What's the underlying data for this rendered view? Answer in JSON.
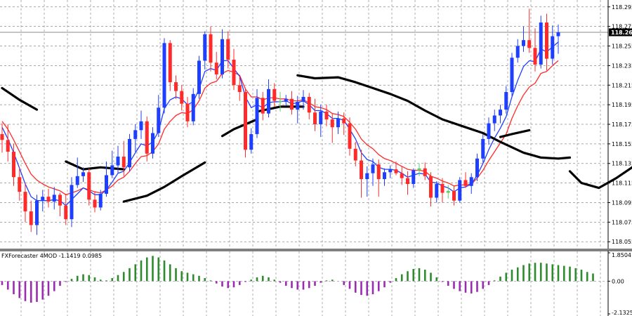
{
  "chart_data": [
    {
      "type": "candlestick",
      "ylim": [
        118.048,
        118.302
      ],
      "y_ticks": [
        "118.295",
        "118.275",
        "118.255",
        "118.235",
        "118.215",
        "118.195",
        "118.175",
        "118.155",
        "118.135",
        "118.115",
        "118.095",
        "118.075",
        "118.055"
      ],
      "grid": true,
      "current_price": {
        "value": 118.269,
        "label": "118.269"
      },
      "colors": {
        "bull": "#1f3fff",
        "bear": "#ff2a2a",
        "doji": "#66cc66",
        "fast_ma": "#1f3fff",
        "slow_ma": "#ff2a2a",
        "band": "#000000"
      },
      "candles": [
        [
          118.165,
          118.176,
          118.146,
          118.159
        ],
        [
          118.159,
          118.175,
          118.137,
          118.147
        ],
        [
          118.147,
          118.155,
          118.112,
          118.121
        ],
        [
          118.121,
          118.131,
          118.097,
          118.106
        ],
        [
          118.106,
          118.115,
          118.075,
          118.086
        ],
        [
          118.086,
          118.097,
          118.065,
          118.072
        ],
        [
          118.072,
          118.103,
          118.062,
          118.097
        ],
        [
          118.097,
          118.108,
          118.086,
          118.101
        ],
        [
          118.101,
          118.109,
          118.09,
          118.096
        ],
        [
          118.096,
          118.111,
          118.088,
          118.103
        ],
        [
          118.103,
          118.105,
          118.081,
          118.092
        ],
        [
          118.092,
          118.104,
          118.072,
          118.078
        ],
        [
          118.078,
          118.121,
          118.07,
          118.113
        ],
        [
          118.113,
          118.141,
          118.11,
          118.122
        ],
        [
          118.122,
          118.131,
          118.116,
          118.126
        ],
        [
          118.126,
          118.13,
          118.092,
          118.098
        ],
        [
          118.098,
          118.106,
          118.085,
          118.09
        ],
        [
          118.09,
          118.108,
          118.087,
          118.104
        ],
        [
          118.104,
          118.137,
          118.101,
          118.123
        ],
        [
          118.123,
          118.148,
          118.12,
          118.133
        ],
        [
          118.133,
          118.153,
          118.125,
          118.142
        ],
        [
          118.142,
          118.158,
          118.122,
          118.131
        ],
        [
          118.131,
          118.165,
          118.127,
          118.16
        ],
        [
          118.16,
          118.175,
          118.147,
          118.169
        ],
        [
          118.169,
          118.189,
          118.16,
          118.178
        ],
        [
          118.178,
          118.183,
          118.137,
          118.145
        ],
        [
          118.145,
          118.172,
          118.14,
          118.166
        ],
        [
          118.166,
          118.205,
          118.162,
          118.192
        ],
        [
          118.192,
          118.263,
          118.186,
          118.258
        ],
        [
          118.258,
          118.261,
          118.209,
          118.218
        ],
        [
          118.218,
          118.225,
          118.201,
          118.209
        ],
        [
          118.209,
          118.215,
          118.189,
          118.196
        ],
        [
          118.196,
          118.203,
          118.172,
          118.178
        ],
        [
          118.178,
          118.212,
          118.174,
          118.206
        ],
        [
          118.206,
          118.245,
          118.201,
          118.24
        ],
        [
          118.24,
          118.27,
          118.231,
          118.267
        ],
        [
          118.267,
          118.275,
          118.229,
          118.238
        ],
        [
          118.238,
          118.249,
          118.221,
          118.226
        ],
        [
          118.226,
          118.272,
          118.222,
          118.262
        ],
        [
          118.262,
          118.27,
          118.232,
          118.241
        ],
        [
          118.241,
          118.252,
          118.21,
          118.215
        ],
        [
          118.215,
          118.225,
          118.199,
          118.208
        ],
        [
          118.208,
          118.212,
          118.141,
          118.149
        ],
        [
          118.149,
          118.171,
          118.145,
          118.165
        ],
        [
          118.165,
          118.211,
          118.161,
          118.202
        ],
        [
          118.202,
          118.208,
          118.179,
          118.186
        ],
        [
          118.186,
          118.221,
          118.182,
          118.211
        ],
        [
          118.211,
          118.217,
          118.193,
          118.199
        ],
        [
          118.199,
          118.208,
          118.188,
          118.198
        ],
        [
          118.198,
          118.205,
          118.194,
          118.201
        ],
        [
          118.201,
          118.209,
          118.185,
          118.19
        ],
        [
          118.19,
          118.204,
          118.176,
          118.198
        ],
        [
          118.198,
          118.21,
          118.19,
          118.203
        ],
        [
          118.203,
          118.207,
          118.18,
          118.187
        ],
        [
          118.187,
          118.201,
          118.168,
          118.175
        ],
        [
          118.175,
          118.195,
          118.162,
          118.188
        ],
        [
          118.188,
          118.195,
          118.173,
          118.18
        ],
        [
          118.18,
          118.186,
          118.156,
          118.172
        ],
        [
          118.172,
          118.188,
          118.165,
          118.181
        ],
        [
          118.181,
          118.187,
          118.164,
          118.176
        ],
        [
          118.176,
          118.182,
          118.143,
          118.15
        ],
        [
          118.15,
          118.157,
          118.132,
          118.138
        ],
        [
          118.138,
          118.149,
          118.1,
          118.119
        ],
        [
          118.119,
          118.132,
          118.101,
          118.125
        ],
        [
          118.125,
          118.14,
          118.112,
          118.134
        ],
        [
          118.134,
          118.139,
          118.101,
          118.119
        ],
        [
          118.119,
          118.13,
          118.112,
          118.126
        ],
        [
          118.126,
          118.133,
          118.12,
          118.129
        ],
        [
          118.129,
          118.137,
          118.123,
          118.125
        ],
        [
          118.125,
          118.132,
          118.113,
          118.12
        ],
        [
          118.12,
          118.127,
          118.103,
          118.114
        ],
        [
          118.114,
          118.13,
          118.11,
          118.128
        ],
        [
          118.128,
          118.135,
          118.122,
          118.13
        ],
        [
          118.13,
          118.136,
          118.118,
          118.122
        ],
        [
          118.122,
          118.126,
          118.091,
          118.1
        ],
        [
          118.1,
          118.117,
          118.095,
          118.114
        ],
        [
          118.114,
          118.12,
          118.095,
          118.105
        ],
        [
          118.105,
          118.113,
          118.099,
          118.107
        ],
        [
          118.107,
          118.112,
          118.092,
          118.097
        ],
        [
          118.097,
          118.121,
          118.095,
          118.118
        ],
        [
          118.118,
          118.126,
          118.11,
          118.112
        ],
        [
          118.112,
          118.125,
          118.104,
          118.121
        ],
        [
          118.121,
          118.145,
          118.117,
          118.14
        ],
        [
          118.14,
          118.165,
          118.136,
          118.16
        ],
        [
          118.16,
          118.182,
          118.154,
          118.176
        ],
        [
          118.176,
          118.19,
          118.168,
          118.184
        ],
        [
          118.184,
          118.195,
          118.176,
          118.19
        ],
        [
          118.19,
          118.214,
          118.186,
          118.208
        ],
        [
          118.208,
          118.248,
          118.204,
          118.243
        ],
        [
          118.243,
          118.262,
          118.238,
          118.255
        ],
        [
          118.255,
          118.275,
          118.249,
          118.261
        ],
        [
          118.261,
          118.293,
          118.248,
          118.253
        ],
        [
          118.253,
          118.273,
          118.229,
          118.236
        ],
        [
          118.236,
          118.286,
          118.232,
          118.279
        ],
        [
          118.279,
          118.288,
          118.23,
          118.242
        ],
        [
          118.242,
          118.276,
          118.236,
          118.265
        ],
        [
          118.265,
          118.277,
          118.247,
          118.269
        ]
      ],
      "fast_ma": [
        118.172,
        118.16,
        118.146,
        118.13,
        118.114,
        118.101,
        118.097,
        118.097,
        118.097,
        118.098,
        118.097,
        118.092,
        118.098,
        118.104,
        118.11,
        118.107,
        118.103,
        118.103,
        118.108,
        118.116,
        118.125,
        118.127,
        118.136,
        118.146,
        118.155,
        118.153,
        118.157,
        118.168,
        118.191,
        118.2,
        118.203,
        118.201,
        118.195,
        118.198,
        118.211,
        118.229,
        118.232,
        118.23,
        118.24,
        118.24,
        118.232,
        118.224,
        118.203,
        118.192,
        118.195,
        118.192,
        118.197,
        118.198,
        118.198,
        118.199,
        118.196,
        118.197,
        118.199,
        118.195,
        118.189,
        118.189,
        118.186,
        118.181,
        118.181,
        118.179,
        118.17,
        118.16,
        118.146,
        118.139,
        118.137,
        118.131,
        118.129,
        118.129,
        118.128,
        118.125,
        118.121,
        118.123,
        118.125,
        118.124,
        118.116,
        118.115,
        118.112,
        118.11,
        118.106,
        118.11,
        118.111,
        118.114,
        118.123,
        118.135,
        118.149,
        118.161,
        118.171,
        118.183,
        118.203,
        118.22,
        118.234,
        118.24,
        118.239,
        118.252,
        118.249,
        118.254,
        118.259
      ],
      "slow_ma": [
        118.178,
        118.17,
        118.159,
        118.147,
        118.135,
        118.124,
        118.118,
        118.114,
        118.111,
        118.109,
        118.107,
        118.103,
        118.105,
        118.107,
        118.11,
        118.108,
        118.106,
        118.105,
        118.108,
        118.112,
        118.118,
        118.121,
        118.127,
        118.135,
        118.142,
        118.143,
        118.147,
        118.155,
        118.17,
        118.178,
        118.184,
        118.187,
        118.186,
        118.19,
        118.199,
        118.212,
        118.217,
        118.219,
        118.227,
        118.23,
        118.228,
        118.225,
        118.211,
        118.203,
        118.203,
        118.2,
        118.202,
        118.202,
        118.201,
        118.201,
        118.199,
        118.199,
        118.2,
        118.197,
        118.193,
        118.192,
        118.19,
        118.186,
        118.185,
        118.183,
        118.177,
        118.17,
        118.16,
        118.154,
        118.15,
        118.144,
        118.14,
        118.138,
        118.135,
        118.132,
        118.129,
        118.128,
        118.128,
        118.127,
        118.122,
        118.12,
        118.117,
        118.115,
        118.112,
        118.113,
        118.113,
        118.114,
        118.12,
        118.128,
        118.138,
        118.147,
        118.156,
        118.165,
        118.181,
        118.194,
        118.205,
        118.213,
        118.217,
        118.227,
        118.229,
        118.235,
        118.24
      ],
      "band_segments": [
        [
          [
            0,
            118.212
          ],
          [
            3,
            118.2
          ],
          [
            6,
            118.19
          ]
        ],
        [
          [
            11,
            118.137
          ],
          [
            14,
            118.129
          ],
          [
            17,
            118.131
          ],
          [
            21,
            118.129
          ]
        ],
        [
          [
            21,
            118.096
          ],
          [
            25,
            118.102
          ],
          [
            28,
            118.111
          ],
          [
            31,
            118.122
          ],
          [
            35,
            118.136
          ]
        ],
        [
          [
            38,
            118.163
          ],
          [
            40,
            118.17
          ],
          [
            44,
            118.18
          ]
        ],
        [
          [
            44,
            118.188
          ],
          [
            48,
            118.193
          ],
          [
            52,
            118.193
          ]
        ],
        [
          [
            51,
            118.225
          ],
          [
            54,
            118.222
          ],
          [
            58,
            118.223
          ],
          [
            61,
            118.218
          ],
          [
            64,
            118.212
          ],
          [
            67,
            118.206
          ],
          [
            70,
            118.199
          ],
          [
            73,
            118.189
          ],
          [
            76,
            118.18
          ],
          [
            80,
            118.172
          ],
          [
            83,
            118.166
          ],
          [
            86,
            118.157
          ],
          [
            90,
            118.146
          ],
          [
            93,
            118.141
          ],
          [
            96,
            118.14
          ],
          [
            98,
            118.141
          ]
        ],
        [
          [
            86,
            118.162
          ],
          [
            88,
            118.165
          ],
          [
            91,
            118.169
          ]
        ],
        [
          [
            98,
            118.127
          ],
          [
            100,
            118.115
          ],
          [
            103,
            118.11
          ],
          [
            106,
            118.12
          ],
          [
            109,
            118.132
          ],
          [
            112,
            118.14
          ]
        ]
      ]
    },
    {
      "type": "histogram",
      "title": "FXForecaster 4MOD -1.1419 0.0985",
      "ylim": [
        -2.1325,
        1.8504
      ],
      "y_ticks": [
        "1.8504",
        "0.00",
        "-2.1325"
      ],
      "colors": {
        "positive": "#2e8b2e",
        "negative": "#9b2bb0"
      },
      "values": [
        -0.25,
        -0.55,
        -0.85,
        -1.1,
        -1.3,
        -1.4,
        -1.35,
        -1.2,
        -0.95,
        -0.65,
        -0.3,
        -0.05,
        0.15,
        0.35,
        0.45,
        0.4,
        0.25,
        0.1,
        0.05,
        0.2,
        0.4,
        0.6,
        0.85,
        1.1,
        1.35,
        1.55,
        1.65,
        1.55,
        1.35,
        1.1,
        0.85,
        0.65,
        0.55,
        0.45,
        0.35,
        0.2,
        0.05,
        -0.15,
        -0.35,
        -0.45,
        -0.4,
        -0.25,
        -0.05,
        0.1,
        0.25,
        0.35,
        0.25,
        0.1,
        -0.1,
        -0.3,
        -0.45,
        -0.55,
        -0.55,
        -0.45,
        -0.3,
        -0.1,
        0.05,
        0.1,
        0.0,
        -0.25,
        -0.5,
        -0.75,
        -0.9,
        -0.95,
        -0.85,
        -0.65,
        -0.4,
        -0.1,
        0.2,
        0.45,
        0.65,
        0.8,
        0.85,
        0.75,
        0.55,
        0.25,
        -0.05,
        -0.3,
        -0.5,
        -0.65,
        -0.75,
        -0.8,
        -0.7,
        -0.5,
        -0.25,
        0.05,
        0.3,
        0.55,
        0.75,
        0.9,
        1.05,
        1.15,
        1.2,
        1.2,
        1.15,
        1.1,
        1.05,
        1.0,
        0.95,
        0.85,
        0.75,
        0.6,
        0.5
      ]
    }
  ]
}
